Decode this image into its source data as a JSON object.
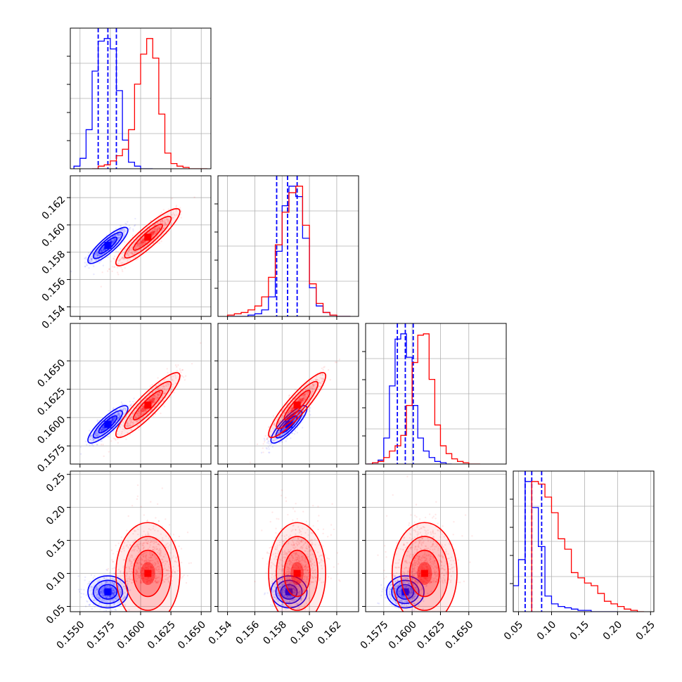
{
  "chart_data": {
    "type": "corner",
    "parameters": [
      {
        "range": [
          0.1542,
          0.1658
        ],
        "ticks": [
          0.155,
          0.1575,
          0.16,
          0.1625,
          0.165
        ],
        "tick_labels": [
          "0.1550",
          "0.1575",
          "0.1600",
          "0.1625",
          "0.1650"
        ]
      },
      {
        "range": [
          0.1533,
          0.1636
        ],
        "ticks": [
          0.154,
          0.156,
          0.158,
          0.16,
          0.162
        ],
        "tick_labels": [
          "0.154",
          "0.156",
          "0.158",
          "0.160",
          "0.162"
        ]
      },
      {
        "range": [
          0.1559,
          0.1683
        ],
        "ticks": [
          0.1575,
          0.16,
          0.1625,
          0.165
        ],
        "tick_labels": [
          "0.1575",
          "0.1600",
          "0.1625",
          "0.1650"
        ]
      },
      {
        "range": [
          0.042,
          0.255
        ],
        "ticks": [
          0.05,
          0.1,
          0.15,
          0.2,
          0.25
        ],
        "tick_labels": [
          "0.05",
          "0.10",
          "0.15",
          "0.20",
          "0.25"
        ]
      }
    ],
    "grid": true,
    "series": [
      {
        "color": "#0000ff",
        "mean": [
          0.1573,
          0.1585,
          0.1594,
          0.072
        ],
        "sd": [
          0.00075,
          0.0006,
          0.00075,
          0.011
        ],
        "corr": [
          [
            1,
            0.85,
            0.85,
            0.0
          ],
          [
            0.85,
            1,
            0.85,
            0.0
          ],
          [
            0.85,
            0.85,
            1,
            0.0
          ],
          [
            0.0,
            0.0,
            0.0,
            1
          ]
        ],
        "quantiles": [
          [
            0.1565,
            0.1573,
            0.158
          ],
          [
            0.1576,
            0.1584,
            0.1591
          ],
          [
            0.1587,
            0.1594,
            0.1601
          ],
          [
            0.06,
            0.07,
            0.085
          ]
        ],
        "histograms": [
          {
            "edges": [
              0.1545,
              0.155,
              0.1555,
              0.156,
              0.1565,
              0.157,
              0.1575,
              0.158,
              0.1585,
              0.159,
              0.1595,
              0.16,
              0.1605,
              0.161
            ],
            "counts": [
              2,
              8,
              30,
              75,
              98,
              100,
              92,
              60,
              22,
              5,
              2,
              0,
              0
            ]
          },
          {
            "edges": [
              0.154,
              0.1545,
              0.155,
              0.1555,
              0.156,
              0.1565,
              0.157,
              0.1575,
              0.158,
              0.1585,
              0.159,
              0.1595,
              0.16,
              0.1605,
              0.161,
              0.1615,
              0.162,
              0.1625,
              0.163
            ],
            "counts": [
              0,
              0,
              0,
              1,
              2,
              5,
              15,
              50,
              85,
              100,
              92,
              60,
              22,
              8,
              3,
              1,
              0,
              0
            ]
          },
          {
            "edges": [
              0.156,
              0.1565,
              0.157,
              0.1575,
              0.158,
              0.1585,
              0.159,
              0.1595,
              0.16,
              0.1605,
              0.161,
              0.1615,
              0.162,
              0.1625,
              0.163,
              0.1635
            ],
            "counts": [
              0,
              1,
              3,
              20,
              60,
              96,
              100,
              82,
              45,
              20,
              10,
              5,
              2,
              1,
              0
            ]
          },
          {
            "edges": [
              0.04,
              0.05,
              0.06,
              0.07,
              0.08,
              0.09,
              0.1,
              0.11,
              0.12,
              0.13,
              0.14,
              0.15,
              0.16,
              0.17,
              0.18,
              0.19,
              0.2
            ],
            "counts": [
              20,
              40,
              100,
              80,
              50,
              12,
              6,
              4,
              3,
              2,
              1,
              1,
              0,
              0,
              0,
              0
            ]
          }
        ]
      },
      {
        "color": "#ff0000",
        "mean": [
          0.1606,
          0.1591,
          0.1611,
          0.1
        ],
        "sd": [
          0.0012,
          0.00095,
          0.0013,
          0.035
        ],
        "corr": [
          [
            1,
            0.9,
            0.9,
            0.0
          ],
          [
            0.9,
            1,
            0.9,
            0.0
          ],
          [
            0.9,
            0.9,
            1,
            0.0
          ],
          [
            0.0,
            0.0,
            0.0,
            1
          ]
        ],
        "histograms": [
          {
            "edges": [
              0.156,
              0.1565,
              0.157,
              0.1575,
              0.158,
              0.1585,
              0.159,
              0.1595,
              0.16,
              0.1605,
              0.161,
              0.1615,
              0.162,
              0.1625,
              0.163,
              0.1635,
              0.164,
              0.1645,
              0.165,
              0.1655
            ],
            "counts": [
              0,
              2,
              3,
              6,
              10,
              15,
              30,
              65,
              88,
              100,
              85,
              42,
              12,
              4,
              2,
              1,
              0,
              0,
              0
            ]
          },
          {
            "edges": [
              0.154,
              0.1545,
              0.155,
              0.1555,
              0.156,
              0.1565,
              0.157,
              0.1575,
              0.158,
              0.1585,
              0.159,
              0.1595,
              0.16,
              0.1605,
              0.161,
              0.1615,
              0.162,
              0.1625,
              0.163
            ],
            "counts": [
              1,
              2,
              3,
              5,
              8,
              15,
              30,
              55,
              80,
              95,
              100,
              70,
              25,
              10,
              3,
              1,
              0,
              0
            ]
          },
          {
            "edges": [
              0.156,
              0.1565,
              0.157,
              0.1575,
              0.158,
              0.1585,
              0.159,
              0.1595,
              0.16,
              0.1605,
              0.161,
              0.1615,
              0.162,
              0.1625,
              0.163,
              0.1635,
              0.164,
              0.1645,
              0.165,
              0.1655,
              0.166
            ],
            "counts": [
              0,
              1,
              2,
              5,
              10,
              14,
              22,
              45,
              78,
              99,
              100,
              65,
              30,
              14,
              8,
              4,
              2,
              1,
              0,
              0
            ]
          },
          {
            "edges": [
              0.07,
              0.08,
              0.09,
              0.1,
              0.11,
              0.12,
              0.13,
              0.14,
              0.15,
              0.16,
              0.17,
              0.18,
              0.19,
              0.2,
              0.21,
              0.22,
              0.23,
              0.24
            ],
            "counts": [
              100,
              98,
              88,
              76,
              56,
              48,
              30,
              26,
              22,
              20,
              14,
              8,
              6,
              4,
              2,
              1,
              0
            ]
          }
        ]
      }
    ]
  }
}
